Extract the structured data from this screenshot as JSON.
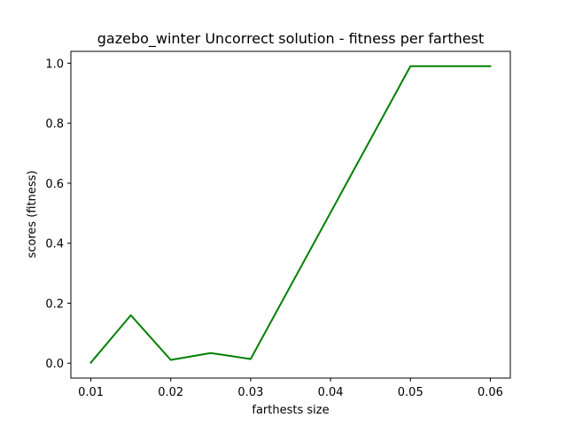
{
  "chart_data": {
    "type": "line",
    "title": "gazebo_winter Uncorrect solution - fitness per farthest",
    "xlabel": "farthests size",
    "ylabel": "scores (fitness)",
    "xlim": [
      0.0075,
      0.0625
    ],
    "ylim": [
      -0.0495,
      1.0395
    ],
    "x_ticks": [
      0.01,
      0.02,
      0.03,
      0.04,
      0.05,
      0.06
    ],
    "x_tick_labels": [
      "0.01",
      "0.02",
      "0.03",
      "0.04",
      "0.05",
      "0.06"
    ],
    "y_ticks": [
      0.0,
      0.2,
      0.4,
      0.6,
      0.8,
      1.0
    ],
    "y_tick_labels": [
      "0.0",
      "0.2",
      "0.4",
      "0.6",
      "0.8",
      "1.0"
    ],
    "grid": false,
    "series": [
      {
        "color": "#008000",
        "x": [
          0.01,
          0.015,
          0.02,
          0.025,
          0.03,
          0.05,
          0.06
        ],
        "y": [
          0.002,
          0.16,
          0.011,
          0.034,
          0.014,
          0.99,
          0.99
        ]
      }
    ]
  }
}
